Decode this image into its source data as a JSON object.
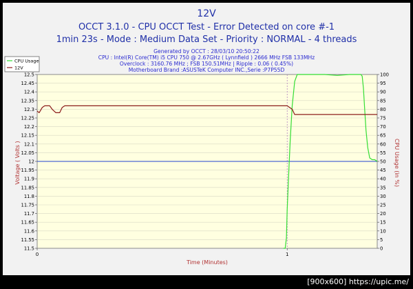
{
  "chart_data": {
    "type": "line",
    "title": "12V",
    "subtitle_lines": [
      "OCCT 3.1.0 - CPU OCCT Test - Error Detected on core #-1",
      "1min 23s - Mode : Medium Data Set - Priority : NORMAL - 4 threads"
    ],
    "info_lines": [
      "Generated by OCCT : 28/03/10 20:50:22",
      "CPU : Intel(R) Core(TM) i5 CPU 750 @ 2.67GHz ( Lynnfield ) 2666 MHz FSB 133MHz",
      "Overclock : 3160.76 MHz ; FSB 150.51MHz | Ripple : 0.06 ( 0.45%)",
      "Motherboard Brand :ASUSTeK Computer INC.,Serie :P7P55D"
    ],
    "xlabel": "Time (Minutes)",
    "ylabel_left": "Voltage ( Volts )",
    "ylabel_right": "CPU Usage (in %)",
    "xlim": [
      0,
      1.36
    ],
    "ylim_left": [
      11.5,
      12.5
    ],
    "ylim_right": [
      0,
      100
    ],
    "x_ticks": [
      0,
      1
    ],
    "y_ticks_left": [
      11.5,
      11.55,
      11.6,
      11.65,
      11.7,
      11.75,
      11.8,
      11.85,
      11.9,
      11.95,
      12,
      12.05,
      12.1,
      12.15,
      12.2,
      12.25,
      12.3,
      12.35,
      12.4,
      12.45,
      12.5
    ],
    "y_ticks_right": [
      0,
      5,
      10,
      15,
      20,
      25,
      30,
      35,
      40,
      45,
      50,
      55,
      60,
      65,
      70,
      75,
      80,
      85,
      90,
      95,
      100
    ],
    "reference_line": {
      "value": 12,
      "color": "#2040d0"
    },
    "marker_x": 1,
    "legend_position": "top-left",
    "grid": true,
    "series": [
      {
        "name": "CPU Usage",
        "axis": "right",
        "color": "#33dd33",
        "points": [
          [
            0.985,
            0
          ],
          [
            0.992,
            0
          ],
          [
            0.997,
            6
          ],
          [
            1.0,
            22
          ],
          [
            1.005,
            40
          ],
          [
            1.012,
            62
          ],
          [
            1.02,
            82
          ],
          [
            1.03,
            96
          ],
          [
            1.04,
            100
          ],
          [
            1.1,
            100
          ],
          [
            1.15,
            100
          ],
          [
            1.2,
            99.5
          ],
          [
            1.25,
            100
          ],
          [
            1.295,
            100
          ],
          [
            1.3,
            99
          ],
          [
            1.305,
            92
          ],
          [
            1.31,
            80
          ],
          [
            1.315,
            68
          ],
          [
            1.322,
            58
          ],
          [
            1.33,
            52
          ],
          [
            1.34,
            51
          ],
          [
            1.35,
            51
          ],
          [
            1.36,
            50
          ]
        ]
      },
      {
        "name": "12V",
        "axis": "left",
        "color": "#8b1a1a",
        "points": [
          [
            0,
            12.29
          ],
          [
            0.008,
            12.28
          ],
          [
            0.02,
            12.31
          ],
          [
            0.03,
            12.32
          ],
          [
            0.05,
            12.32
          ],
          [
            0.06,
            12.3
          ],
          [
            0.075,
            12.28
          ],
          [
            0.09,
            12.28
          ],
          [
            0.1,
            12.31
          ],
          [
            0.11,
            12.32
          ],
          [
            0.2,
            12.32
          ],
          [
            0.4,
            12.32
          ],
          [
            0.6,
            12.32
          ],
          [
            0.8,
            12.32
          ],
          [
            1.0,
            12.32
          ],
          [
            1.02,
            12.3
          ],
          [
            1.03,
            12.27
          ],
          [
            1.1,
            12.27
          ],
          [
            1.2,
            12.27
          ],
          [
            1.3,
            12.27
          ],
          [
            1.36,
            12.27
          ]
        ]
      }
    ]
  },
  "footer": {
    "text": "[900x600] https://upic.me/"
  }
}
